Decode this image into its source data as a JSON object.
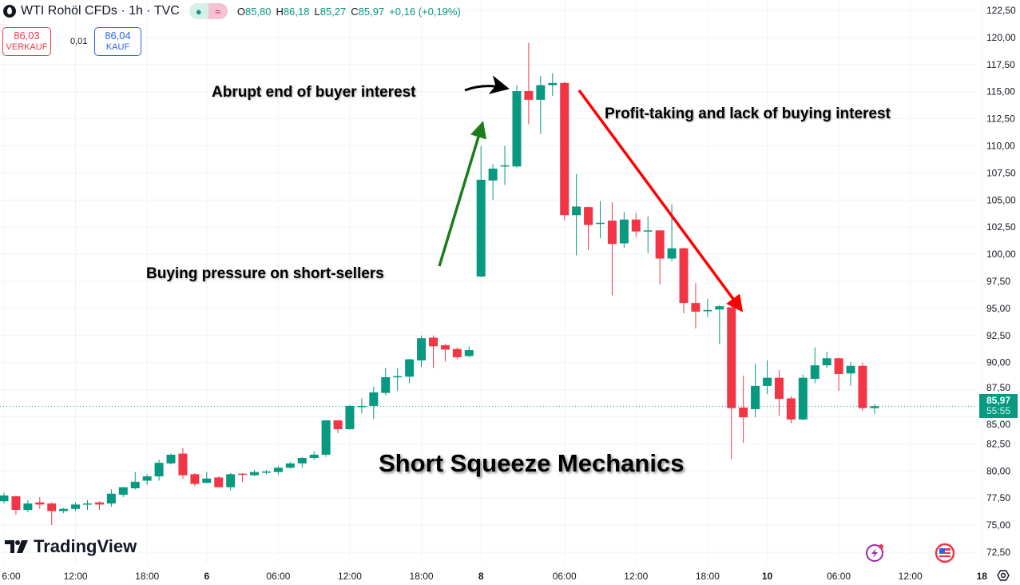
{
  "header": {
    "symbol": "WTI Rohöl CFDs · 1h · TVC",
    "open_label": "O",
    "open": "85,80",
    "high_label": "H",
    "high": "86,18",
    "low_label": "L",
    "low": "85,27",
    "close_label": "C",
    "close": "85,97",
    "change": "+0,16 (+0,19%)",
    "market_status_icon": "dot-icon",
    "approx_icon": "≈"
  },
  "trade": {
    "sell_price": "86,03",
    "sell_label": "VERKAUF",
    "spread": "0,01",
    "buy_price": "86,04",
    "buy_label": "KAUF"
  },
  "annotations": {
    "abrupt": "Abrupt end of buyer interest",
    "profit": "Profit-taking and lack of buying interest",
    "buying": "Buying pressure on short-sellers",
    "title": "Short Squeeze Mechanics"
  },
  "logo": "TradingView",
  "last_price": {
    "value": "85,97",
    "countdown": "55:55"
  },
  "colors": {
    "up": "#089981",
    "down": "#F23645",
    "grid": "#f0f3fa",
    "arrow_green": "#1a7f1a",
    "arrow_red": "#ff0000",
    "arrow_black": "#000000"
  },
  "chart_data": {
    "type": "candlestick",
    "ylim": [
      72.5,
      122.5
    ],
    "yticks": [
      "72,50",
      "75,00",
      "77,50",
      "80,00",
      "82,50",
      "85,00",
      "87,50",
      "90,00",
      "92,50",
      "95,00",
      "97,50",
      "100,00",
      "102,50",
      "105,00",
      "107,50",
      "110,00",
      "112,50",
      "115,00",
      "117,50",
      "120,00",
      "122,50"
    ],
    "xticks": [
      {
        "label": "6:00",
        "bar": 0
      },
      {
        "label": "12:00",
        "bar": 6
      },
      {
        "label": "18:00",
        "bar": 12
      },
      {
        "label": "6",
        "bar": 17
      },
      {
        "label": "06:00",
        "bar": 23
      },
      {
        "label": "12:00",
        "bar": 29
      },
      {
        "label": "18:00",
        "bar": 35
      },
      {
        "label": "8",
        "bar": 40
      },
      {
        "label": "06:00",
        "bar": 47
      },
      {
        "label": "12:00",
        "bar": 53
      },
      {
        "label": "18:00",
        "bar": 59
      },
      {
        "label": "10",
        "bar": 64
      },
      {
        "label": "06:00",
        "bar": 70
      },
      {
        "label": "12:00",
        "bar": 76
      },
      {
        "label": "18",
        "bar": 82
      }
    ],
    "grid": true,
    "last_price": 85.97,
    "ohlc": [
      [
        77.2,
        77.99,
        77.0,
        77.74
      ],
      [
        77.66,
        77.7,
        75.97,
        76.41
      ],
      [
        76.4,
        77.3,
        76.2,
        77.0
      ],
      [
        77.1,
        77.6,
        76.5,
        76.9
      ],
      [
        77.0,
        77.1,
        75.0,
        76.3
      ],
      [
        76.3,
        76.6,
        76.1,
        76.5
      ],
      [
        76.5,
        77.1,
        76.3,
        76.9
      ],
      [
        76.9,
        77.3,
        76.4,
        77.0
      ],
      [
        77.1,
        77.2,
        76.4,
        76.9
      ],
      [
        77.0,
        78.3,
        76.7,
        77.9
      ],
      [
        77.8,
        78.5,
        77.6,
        78.5
      ],
      [
        78.4,
        79.9,
        78.3,
        79.0
      ],
      [
        79.1,
        79.7,
        78.7,
        79.5
      ],
      [
        79.5,
        81.05,
        79.1,
        80.75
      ],
      [
        80.7,
        81.6,
        80.6,
        81.5
      ],
      [
        81.6,
        82.1,
        79.3,
        79.6
      ],
      [
        79.7,
        79.8,
        78.6,
        78.8
      ],
      [
        78.9,
        79.9,
        78.9,
        79.3
      ],
      [
        79.4,
        79.5,
        78.5,
        78.5
      ],
      [
        78.5,
        79.8,
        78.2,
        79.7
      ],
      [
        79.75,
        79.8,
        79.0,
        79.65
      ],
      [
        79.6,
        80.1,
        79.5,
        79.9
      ],
      [
        79.9,
        80.1,
        79.7,
        79.95
      ],
      [
        79.9,
        80.45,
        79.65,
        80.3
      ],
      [
        80.3,
        80.85,
        80.2,
        80.7
      ],
      [
        80.7,
        81.3,
        80.3,
        81.2
      ],
      [
        81.2,
        81.8,
        81.0,
        81.5
      ],
      [
        81.5,
        84.7,
        81.3,
        84.67
      ],
      [
        84.67,
        84.7,
        83.5,
        83.86
      ],
      [
        83.86,
        86.1,
        83.8,
        86.0
      ],
      [
        85.9,
        86.7,
        85.3,
        86.0
      ],
      [
        86.0,
        87.77,
        84.8,
        87.25
      ],
      [
        87.2,
        89.5,
        87.0,
        88.65
      ],
      [
        88.7,
        89.5,
        87.4,
        88.75
      ],
      [
        88.7,
        90.35,
        88.1,
        90.3
      ],
      [
        90.2,
        92.5,
        89.6,
        92.25
      ],
      [
        92.3,
        92.5,
        89.5,
        91.5
      ],
      [
        91.6,
        91.75,
        90.1,
        91.2
      ],
      [
        91.25,
        91.4,
        90.3,
        90.5
      ],
      [
        90.6,
        91.5,
        90.5,
        91.15
      ],
      [
        97.94,
        109.96,
        97.9,
        106.87
      ],
      [
        106.8,
        108.3,
        105.0,
        107.9
      ],
      [
        108.1,
        110.0,
        106.4,
        108.2
      ],
      [
        108.1,
        115.6,
        108.0,
        115.05
      ],
      [
        115.05,
        119.5,
        112.0,
        114.25
      ],
      [
        114.25,
        116.45,
        111.1,
        115.6
      ],
      [
        115.6,
        116.7,
        114.6,
        115.8
      ],
      [
        115.8,
        115.9,
        103.1,
        103.6
      ],
      [
        103.6,
        107.4,
        99.9,
        104.4
      ],
      [
        104.35,
        104.4,
        100.4,
        102.7
      ],
      [
        102.8,
        104.9,
        101.5,
        102.9
      ],
      [
        103.1,
        104.8,
        96.2,
        100.95
      ],
      [
        101.0,
        103.9,
        100.6,
        103.2
      ],
      [
        103.2,
        103.8,
        101.6,
        102.1
      ],
      [
        102.1,
        103.5,
        100.1,
        102.2
      ],
      [
        102.2,
        102.2,
        97.2,
        99.6
      ],
      [
        99.6,
        104.6,
        99.35,
        100.55
      ],
      [
        100.55,
        100.6,
        94.55,
        95.5
      ],
      [
        95.5,
        97.35,
        93.15,
        94.7
      ],
      [
        94.8,
        95.9,
        94.2,
        94.85
      ],
      [
        94.9,
        95.3,
        91.7,
        95.2
      ],
      [
        95.1,
        95.2,
        81.1,
        85.8
      ],
      [
        85.85,
        88.8,
        82.6,
        84.95
      ],
      [
        85.7,
        89.9,
        84.95,
        87.85
      ],
      [
        87.85,
        90.2,
        87.1,
        88.6
      ],
      [
        88.6,
        89.3,
        85.1,
        86.65
      ],
      [
        86.7,
        86.9,
        84.4,
        84.75
      ],
      [
        84.75,
        88.9,
        84.7,
        88.6
      ],
      [
        88.5,
        91.4,
        88.1,
        89.75
      ],
      [
        89.75,
        91.0,
        89.5,
        90.4
      ],
      [
        90.4,
        90.45,
        87.4,
        88.95
      ],
      [
        89.0,
        90.05,
        87.85,
        89.7
      ],
      [
        89.7,
        90.0,
        85.55,
        85.8
      ],
      [
        85.8,
        86.18,
        85.27,
        85.97
      ]
    ]
  }
}
